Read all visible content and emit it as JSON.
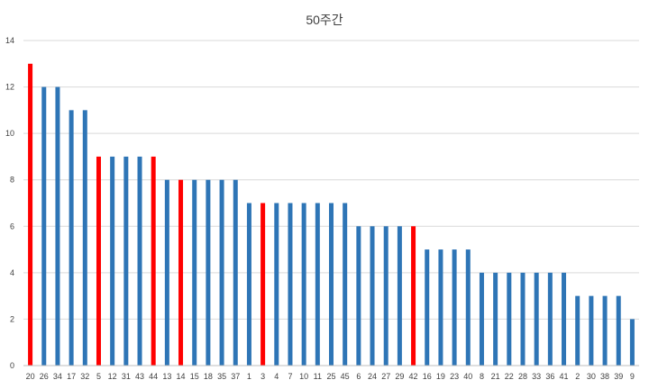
{
  "chart_data": {
    "type": "bar",
    "title": "50주간",
    "xlabel": "",
    "ylabel": "",
    "ylim": [
      0,
      14
    ],
    "yticks": [
      0,
      2,
      4,
      6,
      8,
      10,
      12,
      14
    ],
    "grid": true,
    "legend": "none",
    "categories": [
      "20",
      "26",
      "34",
      "17",
      "32",
      "5",
      "12",
      "31",
      "43",
      "44",
      "13",
      "14",
      "15",
      "18",
      "35",
      "37",
      "1",
      "3",
      "4",
      "7",
      "10",
      "11",
      "25",
      "45",
      "6",
      "24",
      "27",
      "29",
      "42",
      "16",
      "19",
      "23",
      "40",
      "8",
      "21",
      "22",
      "28",
      "33",
      "36",
      "41",
      "2",
      "30",
      "38",
      "39",
      "9"
    ],
    "values": [
      13,
      12,
      12,
      11,
      11,
      9,
      9,
      9,
      9,
      9,
      8,
      8,
      8,
      8,
      8,
      8,
      7,
      7,
      7,
      7,
      7,
      7,
      7,
      7,
      6,
      6,
      6,
      6,
      6,
      5,
      5,
      5,
      5,
      4,
      4,
      4,
      4,
      4,
      4,
      4,
      3,
      3,
      3,
      3,
      2
    ],
    "highlighted": [
      "20",
      "5",
      "44",
      "14",
      "3",
      "42"
    ],
    "colors": {
      "bar": "#2e75b6",
      "highlight": "#ff0000",
      "grid": "#d9d9d9",
      "axis": "#bfbfbf",
      "text": "#404040"
    }
  }
}
